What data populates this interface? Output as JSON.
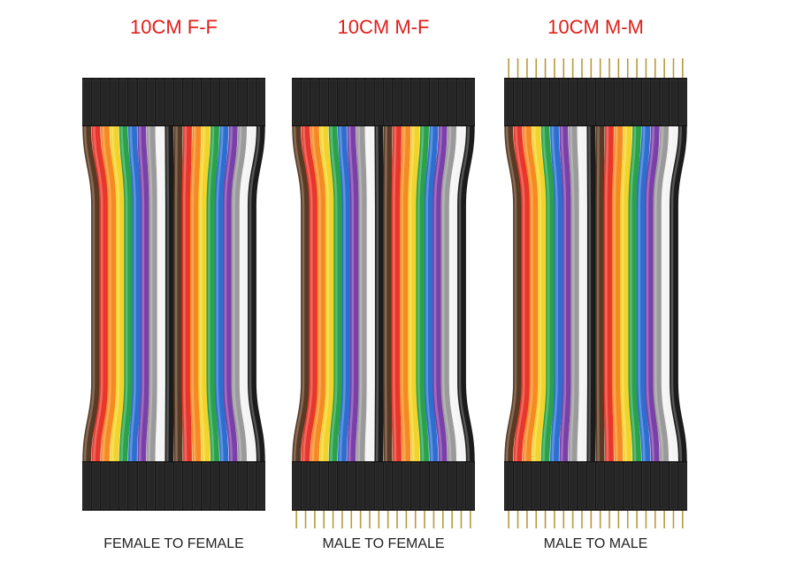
{
  "panels": [
    {
      "title": "10CM F-F",
      "caption": "FEMALE TO FEMALE",
      "top_pins": false,
      "bottom_pins": false
    },
    {
      "title": "10CM M-F",
      "caption": "MALE TO FEMALE",
      "top_pins": false,
      "bottom_pins": true
    },
    {
      "title": "10CM M-M",
      "caption": "MALE TO MALE",
      "top_pins": true,
      "bottom_pins": true
    }
  ]
}
